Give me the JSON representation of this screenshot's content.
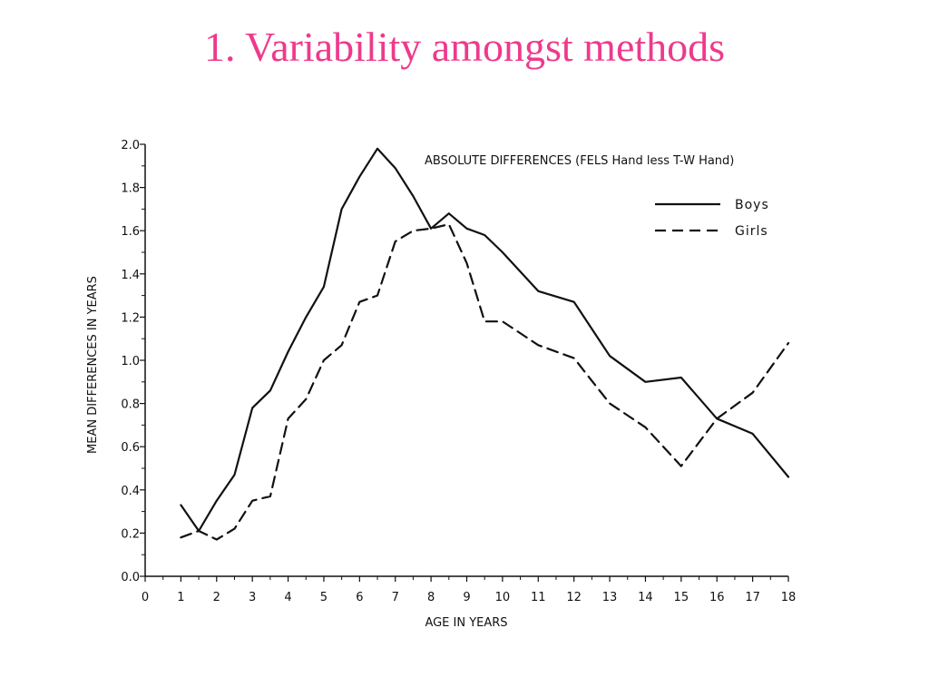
{
  "slide": {
    "title": "1. Variability amongst methods"
  },
  "chart_data": {
    "type": "line",
    "title": "ABSOLUTE DIFFERENCES (FELS Hand less T-W Hand)",
    "xlabel": "AGE IN YEARS",
    "ylabel": "MEAN DIFFERENCES IN YEARS",
    "xlim": [
      0,
      18
    ],
    "ylim": [
      0,
      2.0
    ],
    "xticks": [
      "0",
      "1",
      "2",
      "3",
      "4",
      "5",
      "6",
      "7",
      "8",
      "9",
      "10",
      "11",
      "12",
      "13",
      "14",
      "15",
      "16",
      "17",
      "18"
    ],
    "yticks": [
      "0.0",
      "0.2",
      "0.4",
      "0.6",
      "0.8",
      "1.0",
      "1.2",
      "1.4",
      "1.6",
      "1.8",
      "2.0"
    ],
    "grid": false,
    "legend_position": "top-right",
    "series": [
      {
        "name": "Boys",
        "style": "solid",
        "color": "#111111",
        "points": [
          [
            1.0,
            0.33
          ],
          [
            1.5,
            0.21
          ],
          [
            2.0,
            0.35
          ],
          [
            2.5,
            0.47
          ],
          [
            3.0,
            0.78
          ],
          [
            3.5,
            0.86
          ],
          [
            4.0,
            1.04
          ],
          [
            4.5,
            1.2
          ],
          [
            5.0,
            1.34
          ],
          [
            5.5,
            1.7
          ],
          [
            6.0,
            1.85
          ],
          [
            6.5,
            1.98
          ],
          [
            7.0,
            1.89
          ],
          [
            7.5,
            1.76
          ],
          [
            8.0,
            1.61
          ],
          [
            8.5,
            1.68
          ],
          [
            9.0,
            1.61
          ],
          [
            9.5,
            1.58
          ],
          [
            10.0,
            1.5
          ],
          [
            11.0,
            1.32
          ],
          [
            12.0,
            1.27
          ],
          [
            13.0,
            1.02
          ],
          [
            14.0,
            0.9
          ],
          [
            15.0,
            0.92
          ],
          [
            16.0,
            0.73
          ],
          [
            17.0,
            0.66
          ],
          [
            18.0,
            0.46
          ]
        ]
      },
      {
        "name": "Girls",
        "style": "dashed",
        "color": "#111111",
        "points": [
          [
            1.0,
            0.18
          ],
          [
            1.5,
            0.21
          ],
          [
            2.0,
            0.17
          ],
          [
            2.5,
            0.22
          ],
          [
            3.0,
            0.35
          ],
          [
            3.5,
            0.37
          ],
          [
            4.0,
            0.73
          ],
          [
            4.5,
            0.82
          ],
          [
            5.0,
            1.0
          ],
          [
            5.5,
            1.07
          ],
          [
            6.0,
            1.27
          ],
          [
            6.5,
            1.3
          ],
          [
            7.0,
            1.55
          ],
          [
            7.5,
            1.6
          ],
          [
            8.0,
            1.61
          ],
          [
            8.5,
            1.63
          ],
          [
            9.0,
            1.45
          ],
          [
            9.5,
            1.18
          ],
          [
            10.0,
            1.18
          ],
          [
            11.0,
            1.07
          ],
          [
            12.0,
            1.01
          ],
          [
            13.0,
            0.8
          ],
          [
            14.0,
            0.69
          ],
          [
            15.0,
            0.51
          ],
          [
            16.0,
            0.73
          ],
          [
            17.0,
            0.85
          ],
          [
            18.0,
            1.08
          ]
        ]
      }
    ]
  }
}
